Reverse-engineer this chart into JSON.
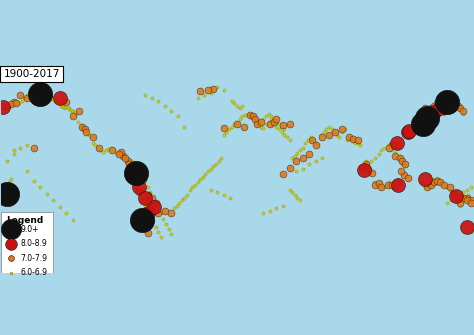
{
  "title": "1900-2017",
  "background_color": "#a8d8ea",
  "land_color": "#f0ece0",
  "border_color": "#bbbbbb",
  "legend_title": "Legend",
  "legend_items": [
    {
      "label": "9.0+",
      "color": "#111111",
      "markersize": 12,
      "edge": "#111111"
    },
    {
      "label": "8.0-8.9",
      "color": "#cc1111",
      "markersize": 9,
      "edge": "#111111"
    },
    {
      "label": "7.0-7.9",
      "color": "#e07818",
      "markersize": 6,
      "edge": "#111111"
    },
    {
      "label": "6.0-6.9",
      "color": "#cccc00",
      "markersize": 3,
      "edge": "#888800"
    }
  ],
  "mag9_points": [
    [
      -150,
      61
    ],
    [
      -72,
      -35
    ],
    [
      -77,
      1
    ],
    [
      -175,
      -15
    ],
    [
      145,
      43
    ],
    [
      142,
      38
    ],
    [
      160,
      55
    ]
  ],
  "mag8_points": [
    [
      -135,
      58
    ],
    [
      -68,
      -30
    ],
    [
      -75,
      -10
    ],
    [
      -63,
      -25
    ],
    [
      -150,
      60
    ],
    [
      145,
      45
    ],
    [
      142,
      40
    ],
    [
      150,
      47
    ],
    [
      155,
      50
    ],
    [
      130,
      32
    ],
    [
      97,
      3
    ],
    [
      122,
      24
    ],
    [
      -178,
      51
    ],
    [
      175,
      -40
    ],
    [
      -70,
      -18
    ],
    [
      167,
      -17
    ],
    [
      123,
      -8
    ],
    [
      131,
      33
    ],
    [
      143,
      -4
    ]
  ],
  "mag7_points": [
    [
      -120,
      48
    ],
    [
      -125,
      44
    ],
    [
      -118,
      36
    ],
    [
      -116,
      34
    ],
    [
      -87,
      14
    ],
    [
      -76,
      -6
    ],
    [
      -70,
      -20
    ],
    [
      -65,
      -25
    ],
    [
      -68,
      -45
    ],
    [
      -60,
      -30
    ],
    [
      -178,
      52
    ],
    [
      -170,
      55
    ],
    [
      -165,
      60
    ],
    [
      -155,
      20
    ],
    [
      -145,
      63
    ],
    [
      -130,
      55
    ],
    [
      -105,
      20
    ],
    [
      -95,
      18
    ],
    [
      -88,
      17
    ],
    [
      -83,
      10
    ],
    [
      -78,
      2
    ],
    [
      -73,
      -3
    ],
    [
      -80,
      -1
    ],
    [
      -77,
      -8
    ],
    [
      -75,
      -14
    ],
    [
      -68,
      -16
    ],
    [
      -65,
      -18
    ],
    [
      -62,
      -22
    ],
    [
      -55,
      -28
    ],
    [
      -50,
      -30
    ],
    [
      25,
      38
    ],
    [
      28,
      40
    ],
    [
      30,
      42
    ],
    [
      35,
      37
    ],
    [
      40,
      38
    ],
    [
      57,
      26
    ],
    [
      65,
      28
    ],
    [
      70,
      30
    ],
    [
      75,
      32
    ],
    [
      80,
      34
    ],
    [
      85,
      28
    ],
    [
      88,
      27
    ],
    [
      92,
      26
    ],
    [
      95,
      5
    ],
    [
      98,
      8
    ],
    [
      100,
      4
    ],
    [
      103,
      1
    ],
    [
      105,
      -8
    ],
    [
      108,
      -7
    ],
    [
      110,
      -10
    ],
    [
      115,
      -8
    ],
    [
      120,
      14
    ],
    [
      122,
      22
    ],
    [
      124,
      12
    ],
    [
      126,
      10
    ],
    [
      128,
      8
    ],
    [
      130,
      30
    ],
    [
      132,
      34
    ],
    [
      134,
      36
    ],
    [
      138,
      36
    ],
    [
      140,
      38
    ],
    [
      142,
      42
    ],
    [
      144,
      44
    ],
    [
      146,
      46
    ],
    [
      148,
      50
    ],
    [
      150,
      52
    ],
    [
      152,
      54
    ],
    [
      154,
      56
    ],
    [
      156,
      52
    ],
    [
      158,
      48
    ],
    [
      160,
      58
    ],
    [
      162,
      60
    ],
    [
      165,
      55
    ],
    [
      168,
      52
    ],
    [
      170,
      50
    ],
    [
      172,
      48
    ],
    [
      175,
      -18
    ],
    [
      178,
      -20
    ],
    [
      -178,
      -16
    ],
    [
      -175,
      -20
    ],
    [
      -170,
      -15
    ],
    [
      145,
      -10
    ],
    [
      148,
      -8
    ],
    [
      150,
      -6
    ],
    [
      152,
      -5
    ],
    [
      155,
      -6
    ],
    [
      158,
      -8
    ],
    [
      162,
      -10
    ],
    [
      165,
      -15
    ],
    [
      168,
      -18
    ],
    [
      170,
      -22
    ],
    [
      172,
      -18
    ],
    [
      175,
      -20
    ],
    [
      178,
      -22
    ],
    [
      10,
      45
    ],
    [
      12,
      44
    ],
    [
      14,
      42
    ],
    [
      15,
      38
    ],
    [
      18,
      40
    ],
    [
      -10,
      35
    ],
    [
      0,
      38
    ],
    [
      5,
      36
    ],
    [
      -18,
      65
    ],
    [
      -22,
      64
    ],
    [
      -28,
      63
    ],
    [
      50,
      12
    ],
    [
      55,
      15
    ],
    [
      60,
      22
    ],
    [
      35,
      0
    ],
    [
      40,
      5
    ],
    [
      45,
      10
    ],
    [
      -90,
      15
    ],
    [
      -85,
      12
    ],
    [
      -82,
      8
    ],
    [
      -110,
      28
    ],
    [
      -115,
      32
    ],
    [
      135,
      34
    ],
    [
      136,
      36
    ],
    [
      138,
      34
    ],
    [
      127,
      -1
    ],
    [
      130,
      -3
    ],
    [
      125,
      2
    ],
    [
      118,
      22
    ],
    [
      116,
      20
    ],
    [
      -175,
      52
    ],
    [
      -172,
      53
    ],
    [
      -168,
      54
    ],
    [
      143,
      50
    ],
    [
      145,
      48
    ],
    [
      147,
      46
    ],
    [
      -160,
      58
    ],
    [
      -155,
      57
    ],
    [
      -152,
      58
    ],
    [
      120,
      -10
    ],
    [
      118,
      -8
    ],
    [
      122,
      -6
    ]
  ],
  "mag6_points": [
    [
      -125,
      48
    ],
    [
      -123,
      46
    ],
    [
      -121,
      40
    ],
    [
      -119,
      37
    ],
    [
      -117,
      35
    ],
    [
      -115,
      32
    ],
    [
      -113,
      30
    ],
    [
      -110,
      24
    ],
    [
      -108,
      22
    ],
    [
      -106,
      20
    ],
    [
      -104,
      18
    ],
    [
      -102,
      17
    ],
    [
      -100,
      18
    ],
    [
      -98,
      19
    ],
    [
      -96,
      20
    ],
    [
      -94,
      18
    ],
    [
      -92,
      16
    ],
    [
      -90,
      16
    ],
    [
      -88,
      16
    ],
    [
      -86,
      14
    ],
    [
      -84,
      12
    ],
    [
      -82,
      10
    ],
    [
      -80,
      10
    ],
    [
      -78,
      8
    ],
    [
      -76,
      4
    ],
    [
      -74,
      2
    ],
    [
      -72,
      -1
    ],
    [
      -70,
      -5
    ],
    [
      -68,
      -10
    ],
    [
      -66,
      -14
    ],
    [
      -64,
      -18
    ],
    [
      -62,
      -22
    ],
    [
      -60,
      -26
    ],
    [
      -58,
      -30
    ],
    [
      -56,
      -34
    ],
    [
      -54,
      -38
    ],
    [
      -52,
      -42
    ],
    [
      -50,
      -46
    ],
    [
      -48,
      -26
    ],
    [
      -46,
      -24
    ],
    [
      -44,
      -22
    ],
    [
      -42,
      -20
    ],
    [
      -40,
      -18
    ],
    [
      -38,
      -16
    ],
    [
      -36,
      -12
    ],
    [
      -34,
      -10
    ],
    [
      -32,
      -8
    ],
    [
      -30,
      -6
    ],
    [
      -28,
      -4
    ],
    [
      -26,
      -2
    ],
    [
      -24,
      0
    ],
    [
      -22,
      2
    ],
    [
      -20,
      4
    ],
    [
      -18,
      6
    ],
    [
      -16,
      8
    ],
    [
      -14,
      10
    ],
    [
      -12,
      12
    ],
    [
      -10,
      30
    ],
    [
      -8,
      32
    ],
    [
      -6,
      34
    ],
    [
      -4,
      36
    ],
    [
      -2,
      38
    ],
    [
      0,
      40
    ],
    [
      2,
      42
    ],
    [
      4,
      44
    ],
    [
      6,
      45
    ],
    [
      8,
      46
    ],
    [
      10,
      44
    ],
    [
      12,
      42
    ],
    [
      14,
      40
    ],
    [
      16,
      38
    ],
    [
      18,
      36
    ],
    [
      20,
      35
    ],
    [
      22,
      38
    ],
    [
      24,
      40
    ],
    [
      26,
      42
    ],
    [
      28,
      38
    ],
    [
      30,
      36
    ],
    [
      32,
      34
    ],
    [
      34,
      32
    ],
    [
      36,
      30
    ],
    [
      38,
      28
    ],
    [
      40,
      26
    ],
    [
      42,
      12
    ],
    [
      44,
      14
    ],
    [
      46,
      16
    ],
    [
      48,
      18
    ],
    [
      50,
      20
    ],
    [
      52,
      24
    ],
    [
      54,
      26
    ],
    [
      56,
      28
    ],
    [
      58,
      26
    ],
    [
      60,
      24
    ],
    [
      62,
      22
    ],
    [
      64,
      30
    ],
    [
      66,
      32
    ],
    [
      68,
      34
    ],
    [
      70,
      36
    ],
    [
      72,
      34
    ],
    [
      74,
      32
    ],
    [
      76,
      30
    ],
    [
      78,
      28
    ],
    [
      80,
      32
    ],
    [
      82,
      34
    ],
    [
      84,
      26
    ],
    [
      86,
      28
    ],
    [
      88,
      25
    ],
    [
      90,
      24
    ],
    [
      92,
      24
    ],
    [
      94,
      22
    ],
    [
      96,
      6
    ],
    [
      98,
      10
    ],
    [
      100,
      2
    ],
    [
      102,
      0
    ],
    [
      104,
      -6
    ],
    [
      106,
      -7
    ],
    [
      108,
      -8
    ],
    [
      110,
      -9
    ],
    [
      112,
      -10
    ],
    [
      114,
      -8
    ],
    [
      116,
      -6
    ],
    [
      118,
      18
    ],
    [
      120,
      16
    ],
    [
      122,
      24
    ],
    [
      124,
      14
    ],
    [
      126,
      8
    ],
    [
      128,
      6
    ],
    [
      130,
      28
    ],
    [
      132,
      30
    ],
    [
      134,
      34
    ],
    [
      136,
      36
    ],
    [
      138,
      36
    ],
    [
      140,
      38
    ],
    [
      142,
      40
    ],
    [
      144,
      42
    ],
    [
      146,
      44
    ],
    [
      148,
      46
    ],
    [
      150,
      50
    ],
    [
      152,
      52
    ],
    [
      154,
      54
    ],
    [
      156,
      50
    ],
    [
      158,
      46
    ],
    [
      160,
      56
    ],
    [
      162,
      58
    ],
    [
      164,
      60
    ],
    [
      166,
      56
    ],
    [
      168,
      54
    ],
    [
      170,
      52
    ],
    [
      172,
      46
    ],
    [
      174,
      -40
    ],
    [
      176,
      -42
    ],
    [
      178,
      -44
    ],
    [
      -176,
      -46
    ],
    [
      -174,
      -20
    ],
    [
      -172,
      -18
    ],
    [
      -170,
      -16
    ],
    [
      -168,
      -14
    ],
    [
      -166,
      54
    ],
    [
      -164,
      56
    ],
    [
      -162,
      58
    ],
    [
      -160,
      60
    ],
    [
      -158,
      62
    ],
    [
      -156,
      58
    ],
    [
      -154,
      59
    ],
    [
      -152,
      60
    ],
    [
      -150,
      62
    ],
    [
      -148,
      64
    ],
    [
      -146,
      65
    ],
    [
      -144,
      62
    ],
    [
      -142,
      60
    ],
    [
      -140,
      58
    ],
    [
      -138,
      56
    ],
    [
      -136,
      54
    ],
    [
      -134,
      52
    ],
    [
      -132,
      50
    ],
    [
      -130,
      54
    ],
    [
      -128,
      50
    ],
    [
      -126,
      48
    ],
    [
      140,
      -6
    ],
    [
      142,
      -8
    ],
    [
      144,
      -10
    ],
    [
      146,
      -8
    ],
    [
      148,
      -6
    ],
    [
      150,
      -4
    ],
    [
      152,
      -3
    ],
    [
      154,
      -4
    ],
    [
      156,
      -6
    ],
    [
      158,
      -8
    ],
    [
      160,
      -10
    ],
    [
      162,
      -12
    ],
    [
      164,
      -14
    ],
    [
      166,
      -16
    ],
    [
      168,
      -20
    ],
    [
      170,
      -24
    ],
    [
      172,
      -20
    ],
    [
      174,
      -18
    ],
    [
      176,
      -16
    ],
    [
      -178,
      -10
    ],
    [
      -176,
      -8
    ],
    [
      -174,
      -6
    ],
    [
      -172,
      -4
    ],
    [
      -170,
      18
    ],
    [
      0,
      52
    ],
    [
      2,
      50
    ],
    [
      4,
      52
    ],
    [
      -2,
      54
    ],
    [
      -4,
      56
    ],
    [
      20,
      42
    ],
    [
      22,
      44
    ],
    [
      24,
      46
    ],
    [
      26,
      44
    ],
    [
      28,
      42
    ],
    [
      30,
      40
    ],
    [
      32,
      38
    ],
    [
      34,
      36
    ],
    [
      36,
      34
    ],
    [
      -70,
      60
    ],
    [
      -65,
      58
    ],
    [
      -60,
      56
    ],
    [
      -55,
      52
    ],
    [
      -50,
      48
    ],
    [
      -45,
      44
    ],
    [
      -40,
      36
    ],
    [
      -30,
      58
    ],
    [
      -25,
      60
    ],
    [
      -20,
      62
    ],
    [
      -15,
      66
    ],
    [
      -10,
      64
    ],
    [
      45,
      2
    ],
    [
      50,
      4
    ],
    [
      55,
      8
    ],
    [
      60,
      10
    ],
    [
      65,
      12
    ],
    [
      40,
      -12
    ],
    [
      42,
      -14
    ],
    [
      44,
      -16
    ],
    [
      46,
      -18
    ],
    [
      48,
      -20
    ],
    [
      -80,
      -4
    ],
    [
      -78,
      -6
    ],
    [
      -76,
      -12
    ],
    [
      -74,
      -16
    ],
    [
      -72,
      -20
    ],
    [
      -70,
      -24
    ],
    [
      -68,
      -28
    ],
    [
      -66,
      -32
    ],
    [
      -64,
      -36
    ],
    [
      -62,
      -40
    ],
    [
      -60,
      -44
    ],
    [
      -58,
      -48
    ],
    [
      20,
      -30
    ],
    [
      25,
      -28
    ],
    [
      30,
      -26
    ],
    [
      35,
      -24
    ],
    [
      -20,
      -12
    ],
    [
      -15,
      -14
    ],
    [
      -10,
      -16
    ],
    [
      -5,
      -18
    ],
    [
      -160,
      2
    ],
    [
      -155,
      -5
    ],
    [
      -150,
      -10
    ],
    [
      -145,
      -15
    ],
    [
      -140,
      -20
    ],
    [
      -135,
      -25
    ],
    [
      -130,
      -30
    ],
    [
      -125,
      -35
    ],
    [
      -175,
      10
    ],
    [
      -170,
      15
    ],
    [
      -165,
      20
    ],
    [
      -160,
      22
    ],
    [
      115,
      22
    ],
    [
      112,
      20
    ],
    [
      110,
      18
    ],
    [
      108,
      15
    ],
    [
      105,
      12
    ],
    [
      102,
      10
    ],
    [
      100,
      8
    ],
    [
      98,
      6
    ],
    [
      -127,
      49
    ],
    [
      -129,
      50
    ],
    [
      -131,
      51
    ],
    [
      -133,
      52
    ],
    [
      -135,
      54
    ],
    [
      -137,
      55
    ],
    [
      -139,
      56
    ],
    [
      -141,
      57
    ],
    [
      160,
      -22
    ],
    [
      163,
      -20
    ],
    [
      166,
      -18
    ],
    [
      169,
      -16
    ],
    [
      172,
      -14
    ],
    [
      175,
      -12
    ],
    [
      178,
      -10
    ],
    [
      -179,
      -8
    ]
  ],
  "xlim": [
    -180,
    180
  ],
  "ylim": [
    -75,
    85
  ]
}
